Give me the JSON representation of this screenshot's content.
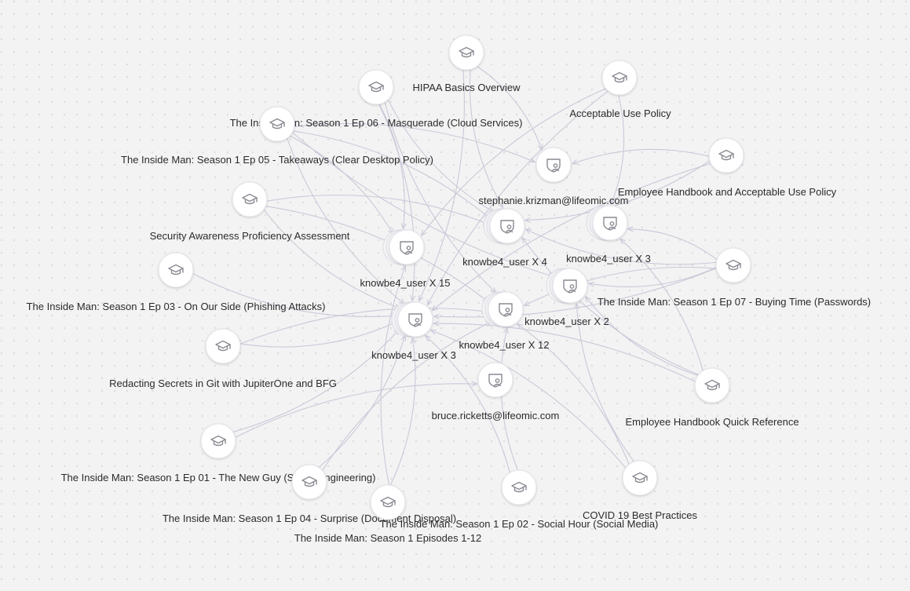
{
  "graph": {
    "courses": [
      {
        "id": "hipaa",
        "label": "HIPAA Basics Overview",
        "icon": "graduation-cap-icon"
      },
      {
        "id": "aup",
        "label": "Acceptable Use Policy",
        "icon": "graduation-cap-icon"
      },
      {
        "id": "ep06",
        "label": "The Inside Man: Season 1 Ep 06 - Masquerade (Cloud Services)",
        "icon": "graduation-cap-icon"
      },
      {
        "id": "ep05",
        "label": "The Inside Man: Season 1 Ep 05 - Takeaways (Clear Desktop Policy)",
        "icon": "graduation-cap-icon"
      },
      {
        "id": "ehaup",
        "label": "Employee Handbook and Acceptable Use Policy",
        "icon": "graduation-cap-icon"
      },
      {
        "id": "sapa",
        "label": "Security Awareness Proficiency Assessment",
        "icon": "graduation-cap-icon"
      },
      {
        "id": "ep03",
        "label": "The Inside Man: Season 1 Ep 03 - On Our Side (Phishing Attacks)",
        "icon": "graduation-cap-icon"
      },
      {
        "id": "ep07",
        "label": "The Inside Man: Season 1 Ep 07 - Buying Time (Passwords)",
        "icon": "graduation-cap-icon"
      },
      {
        "id": "redact",
        "label": "Redacting Secrets in Git with JupiterOne and BFG",
        "icon": "graduation-cap-icon"
      },
      {
        "id": "ehqr",
        "label": "Employee Handbook Quick Reference",
        "icon": "graduation-cap-icon"
      },
      {
        "id": "ep01",
        "label": "The Inside Man: Season 1 Ep 01 - The New Guy (Social Engineering)",
        "icon": "graduation-cap-icon"
      },
      {
        "id": "ep04",
        "label": "The Inside Man: Season 1 Ep 04 - Surprise (Document Disposal)",
        "icon": "graduation-cap-icon"
      },
      {
        "id": "eps",
        "label": "The Inside Man: Season 1 Episodes 1-12",
        "icon": "graduation-cap-icon"
      },
      {
        "id": "ep02",
        "label": "The Inside Man: Season 1 Ep 02 - Social Hour (Social Media)",
        "icon": "graduation-cap-icon"
      },
      {
        "id": "covid",
        "label": "COVID 19 Best Practices",
        "icon": "graduation-cap-icon"
      }
    ],
    "users": [
      {
        "id": "stephanie",
        "label": "stephanie.krizman@lifeomic.com",
        "icon": "user-shield-icon"
      },
      {
        "id": "u4",
        "label": "knowbe4_user X 4",
        "icon": "user-shield-icon"
      },
      {
        "id": "u3b",
        "label": "knowbe4_user X 3",
        "icon": "user-shield-icon"
      },
      {
        "id": "u15",
        "label": "knowbe4_user X 15",
        "icon": "user-shield-icon"
      },
      {
        "id": "u2",
        "label": "knowbe4_user X 2",
        "icon": "user-shield-icon"
      },
      {
        "id": "u12",
        "label": "knowbe4_user X 12",
        "icon": "user-shield-icon"
      },
      {
        "id": "u3a",
        "label": "knowbe4_user X 3",
        "icon": "user-shield-icon"
      },
      {
        "id": "bruce",
        "label": "bruce.ricketts@lifeomic.com",
        "icon": "user-shield-icon"
      }
    ],
    "colors": {
      "background": "#f3f3f3",
      "dot": "#d9d9d9",
      "edge": "#c9c9d9",
      "icon": "#8a8a93"
    }
  }
}
